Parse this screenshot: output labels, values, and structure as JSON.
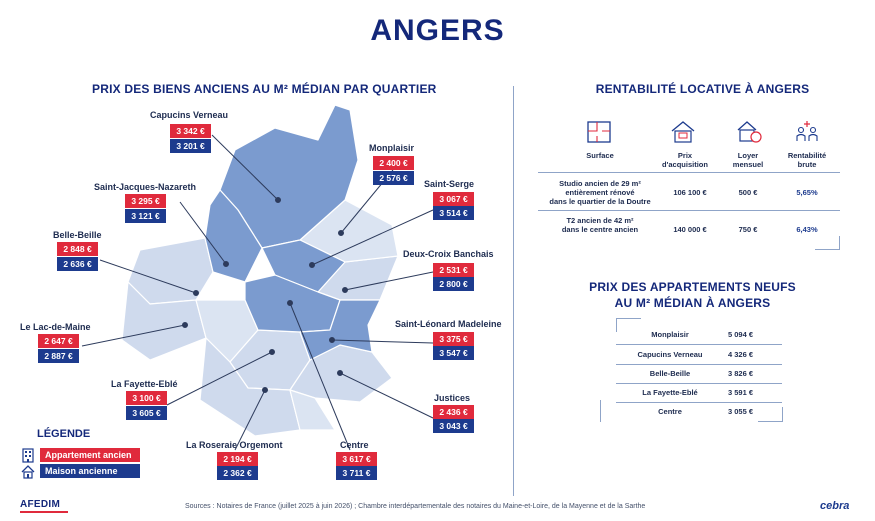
{
  "title": "ANGERS",
  "map_section": {
    "title": "PRIX DES BIENS ANCIENS AU M² MÉDIAN PAR QUARTIER",
    "quartiers": [
      {
        "name": "Capucins Verneau",
        "ancien": "3 342 €",
        "maison": "3 201 €"
      },
      {
        "name": "Monplaisir",
        "ancien": "2 400 €",
        "maison": "2 576 €"
      },
      {
        "name": "Saint-Jacques-Nazareth",
        "ancien": "3 295 €",
        "maison": "3 121 €"
      },
      {
        "name": "Saint-Serge",
        "ancien": "3 067 €",
        "maison": "3 514 €"
      },
      {
        "name": "Belle-Beille",
        "ancien": "2 848 €",
        "maison": "2 636 €"
      },
      {
        "name": "Deux-Croix Banchais",
        "ancien": "2 531 €",
        "maison": "2 800 €"
      },
      {
        "name": "Le Lac-de-Maine",
        "ancien": "2 647 €",
        "maison": "2 887 €"
      },
      {
        "name": "Saint-Léonard Madeleine",
        "ancien": "3 375 €",
        "maison": "3 547 €"
      },
      {
        "name": "La Fayette-Eblé",
        "ancien": "3 100 €",
        "maison": "3 605 €"
      },
      {
        "name": "Justices",
        "ancien": "2 436 €",
        "maison": "3 043 €"
      },
      {
        "name": "La Roseraie Orgemont",
        "ancien": "2 194 €",
        "maison": "2 362 €"
      },
      {
        "name": "Centre",
        "ancien": "3 617 €",
        "maison": "3 711 €"
      }
    ]
  },
  "legend": {
    "title": "LÉGENDE",
    "appartement": "Appartement ancien",
    "maison": "Maison ancienne"
  },
  "rentabilite": {
    "title": "RENTABILITÉ LOCATIVE À ANGERS",
    "headers": {
      "surface": "Surface",
      "prix": [
        "Prix",
        "d'acquisition"
      ],
      "loyer": [
        "Loyer",
        "mensuel"
      ],
      "rent": [
        "Rentabilité",
        "brute"
      ]
    },
    "rows": [
      {
        "label": [
          "Studio ancien de 29 m²",
          "entièrement rénové",
          "dans le quartier de la Doutre"
        ],
        "prix": "106 100 €",
        "loyer": "500 €",
        "rent": "5,65%"
      },
      {
        "label": [
          "T2 ancien de 42 m²",
          "dans le centre ancien"
        ],
        "prix": "140 000 €",
        "loyer": "750 €",
        "rent": "6,43%"
      }
    ],
    "icons": [
      "floorplan-icon",
      "house-price-icon",
      "house-rent-icon",
      "people-chart-icon"
    ]
  },
  "neufs": {
    "title_line1": "PRIX DES APPARTEMENTS NEUFS",
    "title_line2": "AU M² MÉDIAN À ANGERS",
    "rows": [
      {
        "name": "Monplaisir",
        "value": "5 094 €"
      },
      {
        "name": "Capucins Verneau",
        "value": "4 326 €"
      },
      {
        "name": "Belle-Beille",
        "value": "3 826 €"
      },
      {
        "name": "La Fayette-Eblé",
        "value": "3 591 €"
      },
      {
        "name": "Centre",
        "value": "3 055 €"
      }
    ]
  },
  "footer": {
    "sources": "Sources : Notaires de France (juillet 2025 à juin 2026) ; Chambre interdépartementale des notaires du Maine-et-Loire, de la Mayenne et de la Sarthe",
    "logo_left": "AFEDIM",
    "logo_right": "cebra"
  },
  "colors": {
    "navy": "#14287a",
    "red": "#e02a3c",
    "blue": "#1d3b8e",
    "map_dark": "#7b9bcf",
    "map_light": "#cfdaed",
    "map_mid": "#a9bfe2"
  }
}
